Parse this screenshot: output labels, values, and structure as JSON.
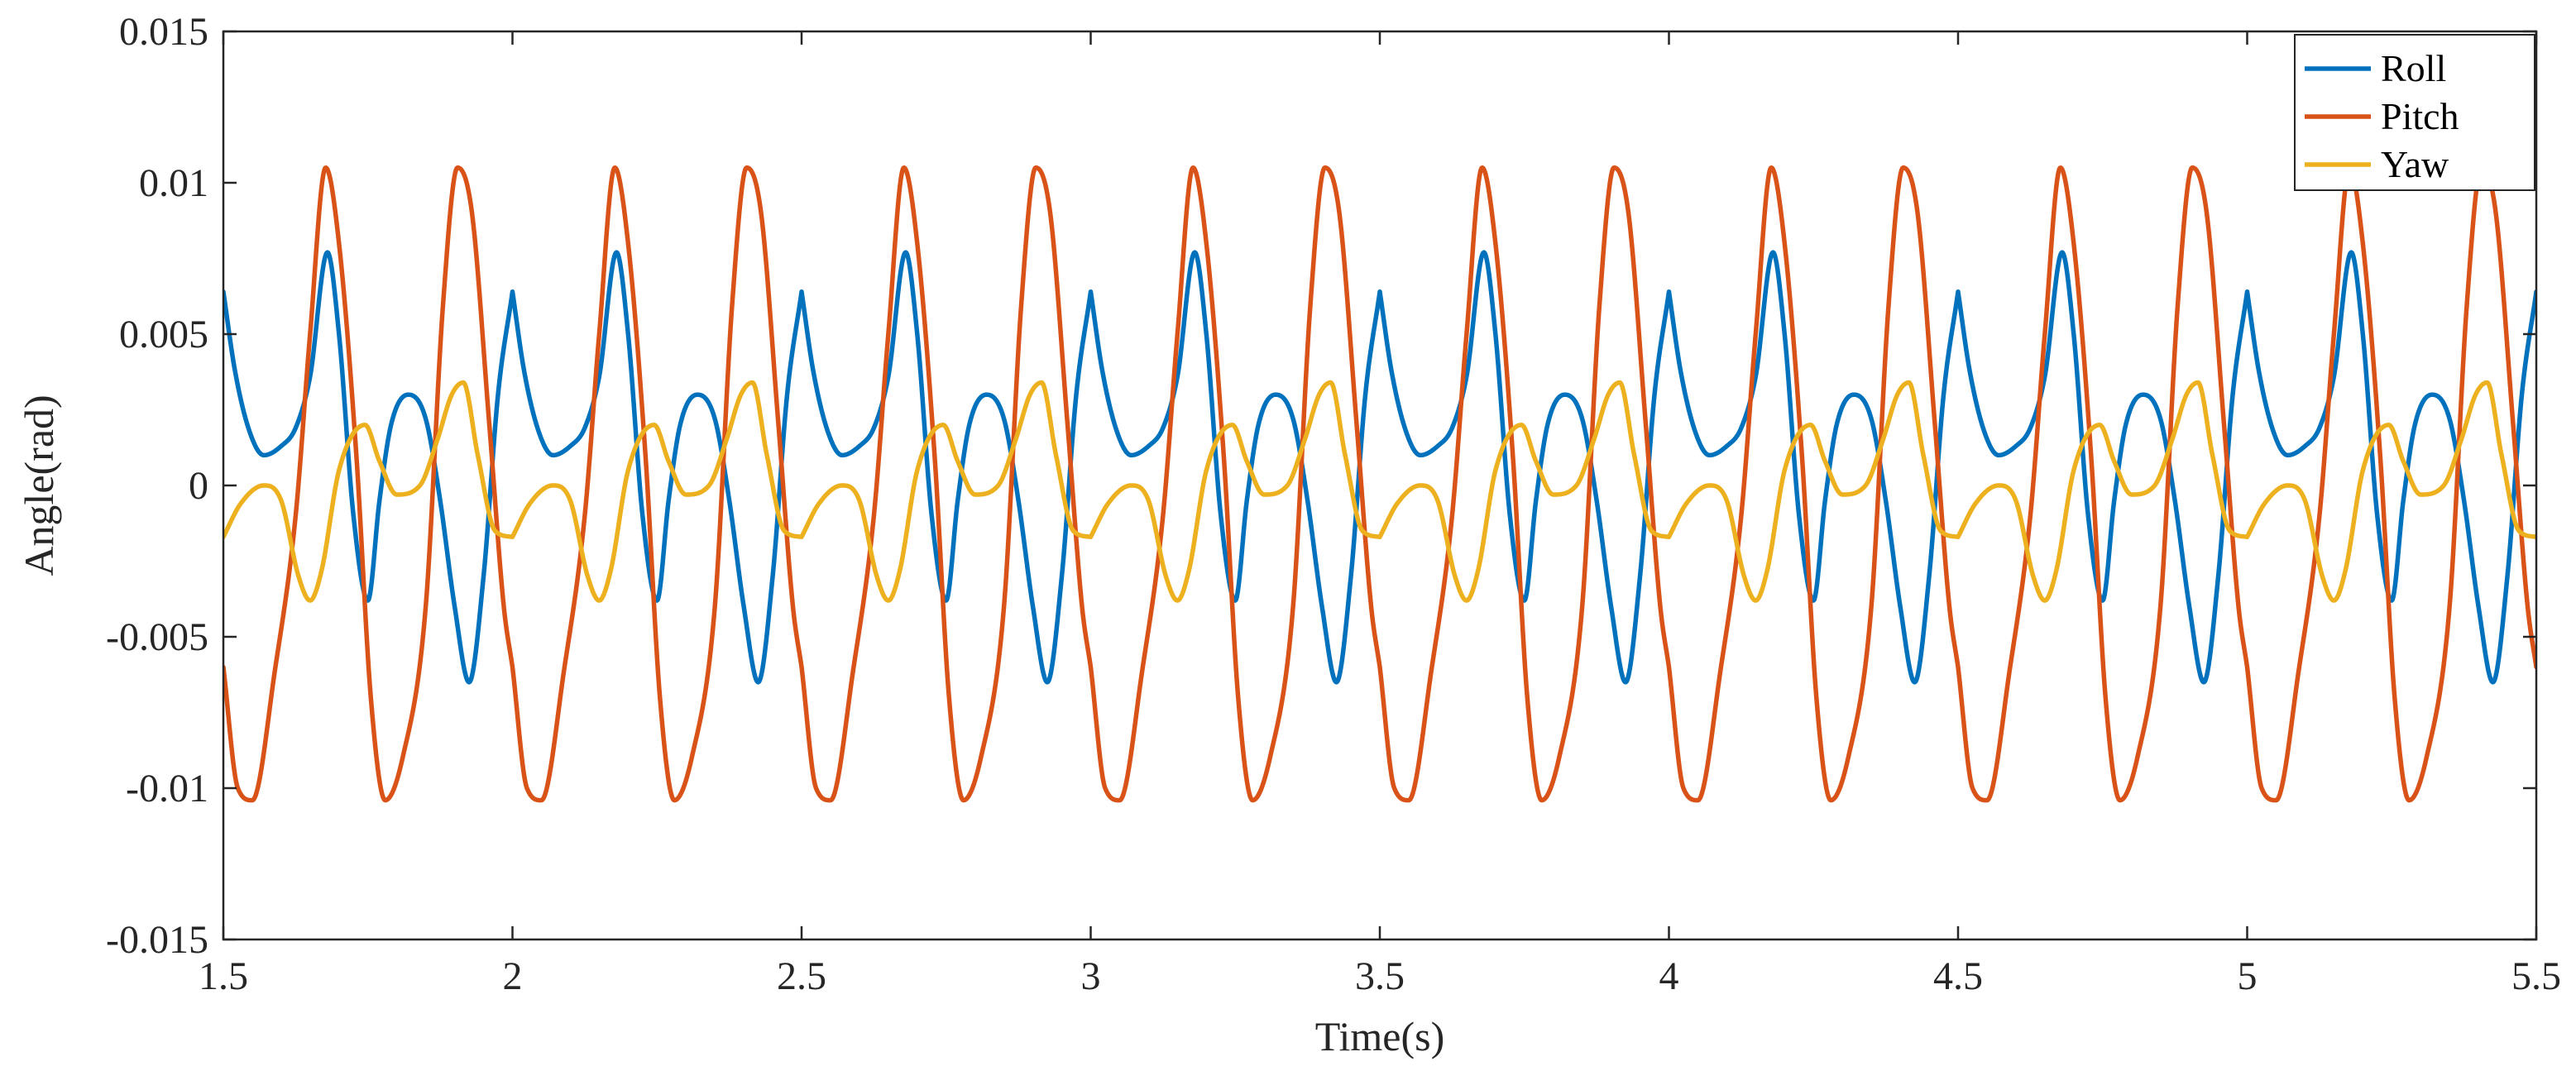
{
  "chart_data": {
    "type": "line",
    "title": "",
    "xlabel": "Time(s)",
    "ylabel": "Angle(rad)",
    "xlim": [
      1.5,
      5.5
    ],
    "ylim": [
      -0.015,
      0.015
    ],
    "grid": false,
    "legend_position": "top-right",
    "period": 0.5,
    "x_ticks": [
      1.5,
      2,
      2.5,
      3,
      3.5,
      4,
      4.5,
      5,
      5.5
    ],
    "x_tick_labels": [
      "1.5",
      "2",
      "2.5",
      "3",
      "3.5",
      "4",
      "4.5",
      "5",
      "5.5"
    ],
    "y_ticks": [
      -0.015,
      -0.01,
      -0.005,
      0,
      0.005,
      0.01,
      0.015
    ],
    "y_tick_labels": [
      "-0.015",
      "-0.01",
      "-0.005",
      "0",
      "0.005",
      "0.01",
      "0.015"
    ],
    "series": [
      {
        "name": "Roll",
        "color": "#0072BD",
        "note": "one period (0.5 s) of keypoints, repeats",
        "x": [
          1.5,
          1.52,
          1.545,
          1.57,
          1.6,
          1.625,
          1.65,
          1.68,
          1.7,
          1.725,
          1.75,
          1.77,
          1.79,
          1.82,
          1.85,
          1.875,
          1.9,
          1.925,
          1.95,
          1.975,
          2.0
        ],
        "values": [
          0.0064,
          0.0038,
          0.0018,
          0.001,
          0.0013,
          0.0019,
          0.0036,
          0.0077,
          0.005,
          -0.001,
          -0.0038,
          -0.0005,
          0.002,
          0.003,
          0.0022,
          -0.0005,
          -0.004,
          -0.0065,
          -0.003,
          0.003,
          0.0064
        ]
      },
      {
        "name": "Pitch",
        "color": "#D95319",
        "note": "one period (0.5 s) of keypoints, repeats",
        "x": [
          1.5,
          1.525,
          1.55,
          1.59,
          1.625,
          1.65,
          1.677,
          1.7,
          1.73,
          1.755,
          1.78,
          1.81,
          1.85,
          1.88,
          1.905,
          1.93,
          1.96,
          1.985,
          2.0
        ],
        "values": [
          -0.006,
          -0.01,
          -0.0104,
          -0.006,
          -0.001,
          0.005,
          0.0105,
          0.008,
          0.001,
          -0.007,
          -0.0104,
          -0.009,
          -0.004,
          0.006,
          0.0105,
          0.009,
          0.002,
          -0.004,
          -0.006
        ]
      },
      {
        "name": "Yaw",
        "color": "#EDB120",
        "note": "one period (0.5 s) of keypoints, repeats",
        "x": [
          1.5,
          1.53,
          1.57,
          1.6,
          1.63,
          1.65,
          1.67,
          1.7,
          1.745,
          1.77,
          1.8,
          1.84,
          1.87,
          1.895,
          1.915,
          1.94,
          1.97,
          2.0
        ],
        "values": [
          -0.0017,
          -0.0006,
          0.0,
          -0.0005,
          -0.003,
          -0.0038,
          -0.0028,
          0.0005,
          0.002,
          0.0008,
          -0.0003,
          0.0,
          0.0015,
          0.003,
          0.0034,
          0.001,
          -0.0015,
          -0.0017
        ]
      }
    ]
  }
}
